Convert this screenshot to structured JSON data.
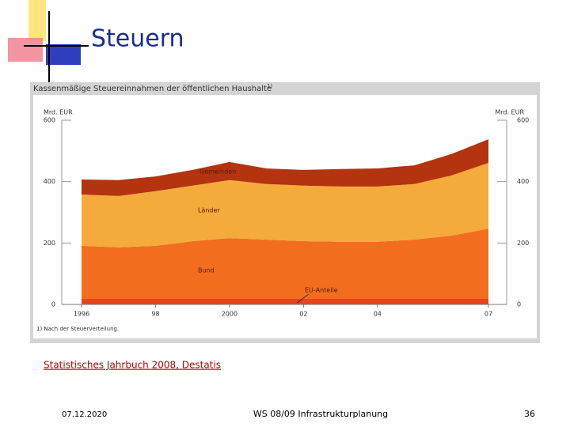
{
  "slide": {
    "title": "Steuern",
    "source": "Statistisches Jahrbuch 2008, Destatis",
    "date": "07.12.2020",
    "course": "WS 08/09 Infrastrukturplanung",
    "page": "36"
  },
  "chart_data": {
    "type": "stacked_area",
    "title": "Kassenmäßige Steuereinnahmen der öffentlichen Haushalte",
    "title_note": "1)",
    "footnote": "1) Nach der Steuerverteilung.",
    "y_label": "Mrd. EUR",
    "y2_label": "Mrd. EUR",
    "x": [
      1996,
      1997,
      1998,
      1999,
      2000,
      2001,
      2002,
      2003,
      2004,
      2005,
      2006,
      2007
    ],
    "xlim": [
      1996,
      2007
    ],
    "xticks": [
      1996,
      {
        "value": 1998,
        "label": "98"
      },
      2000,
      {
        "value": 2002,
        "label": "02"
      },
      {
        "value": 2004,
        "label": "04"
      },
      {
        "value": 2007,
        "label": "07"
      }
    ],
    "ylim": [
      0,
      600
    ],
    "yticks": [
      0,
      200,
      400,
      600
    ],
    "y2lim": [
      0,
      600
    ],
    "y2ticks": [
      0,
      200,
      400,
      600
    ],
    "series": [
      {
        "name": "EU-Anteile",
        "color": "#e8431c",
        "values": [
          18,
          18,
          18,
          18,
          18,
          18,
          18,
          18,
          18,
          18,
          18,
          18
        ]
      },
      {
        "name": "Bund",
        "color": "#f36d1f",
        "values": [
          173,
          168,
          173,
          188,
          198,
          193,
          188,
          186,
          186,
          193,
          206,
          229
        ]
      },
      {
        "name": "Länder",
        "color": "#f5aa3c",
        "values": [
          167,
          167,
          178,
          181,
          189,
          181,
          181,
          180,
          180,
          181,
          196,
          214
        ]
      },
      {
        "name": "Gemeinden",
        "color": "#b3340f",
        "values": [
          49,
          52,
          48,
          51,
          59,
          51,
          51,
          57,
          59,
          61,
          70,
          77
        ]
      }
    ]
  }
}
